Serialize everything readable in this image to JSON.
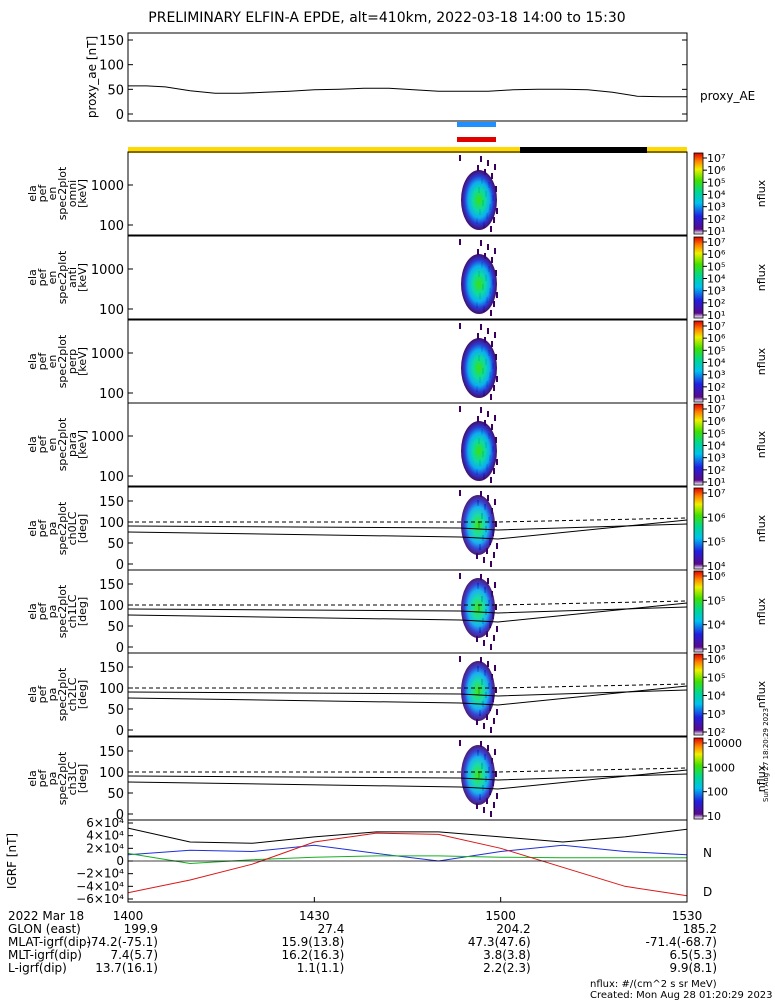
{
  "title": "PRELIMINARY ELFIN-A EPDE, alt=410km, 2022-03-18 14:00 to 15:30",
  "colors": {
    "sun_bar": "#FFD800",
    "eclipse_bar": "#000000",
    "ibo_bar": "#1E90FF",
    "obo_bar": "#E00000",
    "bx": "#1E2FD8",
    "by": "#17B020",
    "bz": "#D81818",
    "bmag": "#000000"
  },
  "chart_data": [
    {
      "type": "line",
      "panel": "proxy_ae",
      "ylabel": "proxy_ae [nT]",
      "series_label": "proxy_AE",
      "ylim": [
        0,
        150
      ],
      "yticks": [
        "150",
        "100",
        "50",
        "0"
      ],
      "x_minutes": [
        0,
        3,
        6,
        10,
        14,
        18,
        22,
        26,
        30,
        34,
        38,
        42,
        46,
        50,
        54,
        58,
        62,
        66,
        70,
        74,
        78,
        82,
        86,
        90
      ],
      "values": [
        57,
        57,
        55,
        47,
        42,
        42,
        44,
        46,
        49,
        50,
        52,
        52,
        49,
        46,
        46,
        46,
        49,
        50,
        50,
        49,
        44,
        36,
        35,
        35
      ]
    },
    {
      "type": "heatmap",
      "panel": "omni",
      "ylabel_lines": [
        "ela",
        "pef",
        "en",
        "spec2plot",
        "omni",
        "[keV]"
      ],
      "yticks": [
        "1000",
        "100"
      ],
      "colorbar_ticks": [
        "10^7",
        "10^6",
        "10^5",
        "10^4",
        "10^3",
        "10^2",
        "10^1"
      ],
      "colorbar_label": "nflux"
    },
    {
      "type": "heatmap",
      "panel": "anti",
      "ylabel_lines": [
        "ela",
        "pef",
        "en",
        "spec2plot",
        "anti",
        "[keV]"
      ],
      "yticks": [
        "1000",
        "100"
      ],
      "colorbar_ticks": [
        "10^7",
        "10^6",
        "10^5",
        "10^4",
        "10^3",
        "10^2",
        "10^1"
      ],
      "colorbar_label": "nflux"
    },
    {
      "type": "heatmap",
      "panel": "perp",
      "ylabel_lines": [
        "ela",
        "pef",
        "en",
        "spec2plot",
        "perp",
        "[keV]"
      ],
      "yticks": [
        "1000",
        "100"
      ],
      "colorbar_ticks": [
        "10^7",
        "10^6",
        "10^5",
        "10^4",
        "10^3",
        "10^2",
        "10^1"
      ],
      "colorbar_label": "nflux"
    },
    {
      "type": "heatmap",
      "panel": "para",
      "ylabel_lines": [
        "ela",
        "pef",
        "en",
        "spec2plot",
        "para",
        "[keV]"
      ],
      "yticks": [
        "1000",
        "100"
      ],
      "colorbar_ticks": [
        "10^7",
        "10^6",
        "10^5",
        "10^4",
        "10^3",
        "10^2",
        "10^1"
      ],
      "colorbar_label": "nflux"
    },
    {
      "type": "heatmap",
      "panel": "ch0LC",
      "ylabel_lines": [
        "ela",
        "pef",
        "pa",
        "spec2plot",
        "ch0LC",
        "[deg]"
      ],
      "yticks": [
        "150",
        "100",
        "50",
        "0"
      ],
      "colorbar_ticks": [
        "10^7",
        "10^6",
        "10^5",
        "10^4"
      ],
      "colorbar_label": "nflux"
    },
    {
      "type": "heatmap",
      "panel": "ch1LC",
      "ylabel_lines": [
        "ela",
        "pef",
        "pa",
        "spec2plot",
        "ch1LC",
        "[deg]"
      ],
      "yticks": [
        "150",
        "100",
        "50",
        "0"
      ],
      "colorbar_ticks": [
        "10^6",
        "10^5",
        "10^4",
        "10^3"
      ],
      "colorbar_label": "nflux"
    },
    {
      "type": "heatmap",
      "panel": "ch2LC",
      "ylabel_lines": [
        "ela",
        "pef",
        "pa",
        "spec2plot",
        "ch2LC",
        "[deg]"
      ],
      "yticks": [
        "150",
        "100",
        "50",
        "0"
      ],
      "colorbar_ticks": [
        "10^6",
        "10^5",
        "10^4",
        "10^3",
        "10^2"
      ],
      "colorbar_label": "nflux"
    },
    {
      "type": "heatmap",
      "panel": "ch3LC",
      "ylabel_lines": [
        "ela",
        "pef",
        "pa",
        "spec2plot",
        "ch3LC",
        "[deg]"
      ],
      "yticks": [
        "150",
        "100",
        "50",
        "0"
      ],
      "colorbar_ticks": [
        "10000",
        "1000",
        "100",
        "10"
      ],
      "colorbar_label": "nflux"
    },
    {
      "type": "line",
      "panel": "igrf",
      "ylabel": "IGRF [nT]",
      "yticks": [
        "6×10⁴",
        "4×10⁴",
        "2×10⁴",
        "0",
        "−2×10⁴",
        "−4×10⁴",
        "−6×10⁴"
      ],
      "ylim": [
        -60000,
        60000
      ],
      "legend": [
        "N",
        "D"
      ],
      "x_minutes": [
        0,
        10,
        20,
        30,
        40,
        50,
        60,
        70,
        80,
        90
      ],
      "series": [
        {
          "name": "N",
          "values": [
            10000,
            17000,
            15000,
            25000,
            12000,
            0,
            15000,
            25000,
            15000,
            10000
          ]
        },
        {
          "name": "",
          "values": [
            12000,
            -4000,
            2000,
            6000,
            8000,
            8000,
            6000,
            5000,
            5000,
            5000
          ]
        },
        {
          "name": "D",
          "values": [
            -50000,
            -30000,
            -5000,
            30000,
            44000,
            42000,
            20000,
            -10000,
            -40000,
            -55000
          ]
        },
        {
          "name": "",
          "values": [
            52000,
            30000,
            28000,
            38000,
            46000,
            46000,
            38000,
            30000,
            38000,
            50000
          ]
        }
      ]
    }
  ],
  "xaxis": {
    "date": "2022 Mar 18",
    "ticks": [
      "1400",
      "1430",
      "1500",
      "1530"
    ],
    "rows": [
      {
        "label": "GLON (east)",
        "values": [
          "199.9",
          "27.4",
          "204.2",
          "185.2"
        ]
      },
      {
        "label": "MLAT-igrf(dip)",
        "values": [
          "-74.2(-75.1)",
          "15.9(13.8)",
          "47.3(47.6)",
          "-71.4(-68.7)"
        ]
      },
      {
        "label": "MLT-igrf(dip)",
        "values": [
          "7.4(5.7)",
          "16.2(16.3)",
          "3.8(3.8)",
          "6.5(5.3)"
        ]
      },
      {
        "label": "L-igrf(dip)",
        "values": [
          "13.7(16.1)",
          "1.1(1.1)",
          "2.2(2.3)",
          "9.9(8.1)"
        ]
      }
    ]
  },
  "side_stamp": "Sun Aug 27 18:20:29 2023",
  "footer": {
    "units": "nflux: #/(cm^2 s sr MeV)",
    "created": "Created: Mon Aug 28 01:20:29 2023"
  }
}
